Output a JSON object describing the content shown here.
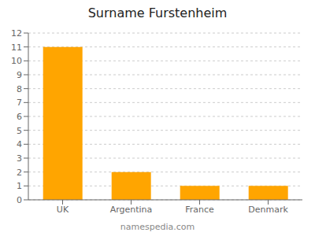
{
  "chart_data": {
    "type": "bar",
    "title": "Surname Furstenheim",
    "categories": [
      "UK",
      "Argentina",
      "France",
      "Denmark"
    ],
    "values": [
      11,
      2,
      1,
      1
    ],
    "color": "#FFA500",
    "ylim": [
      0,
      12
    ],
    "yticks": [
      0,
      1,
      2,
      3,
      4,
      5,
      6,
      7,
      8,
      9,
      10,
      11,
      12
    ],
    "grid": true,
    "footer": "namespedia.com"
  }
}
